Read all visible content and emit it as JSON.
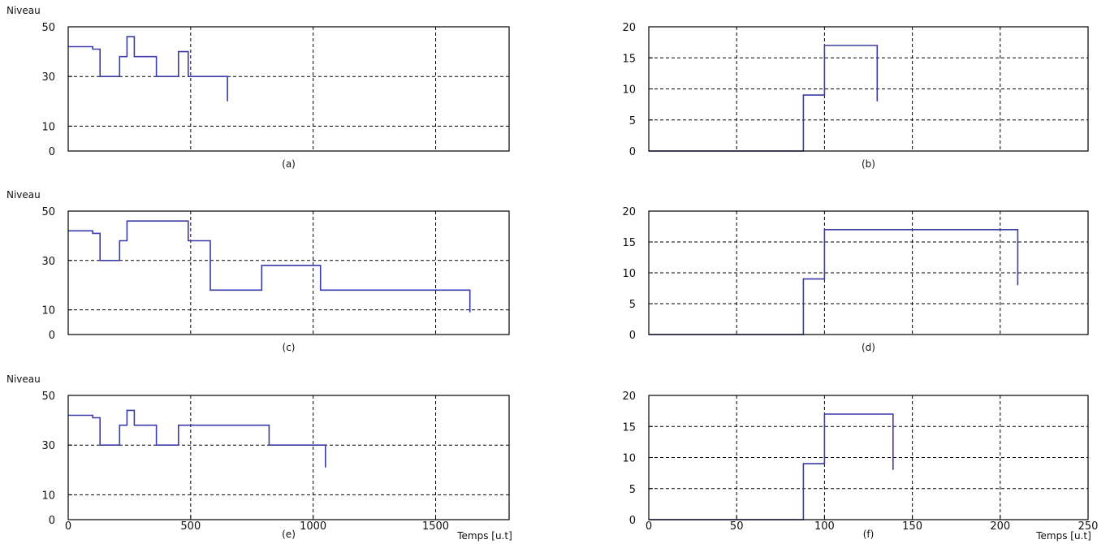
{
  "figure": {
    "background": "#ffffff",
    "line_color": "#3a3aa8",
    "grid_color": "#000000"
  },
  "chart_data": [
    {
      "id": "a",
      "type": "line",
      "caption": "(a)",
      "ylabel": "Niveau",
      "xlabel": "",
      "xlim": [
        0,
        1800
      ],
      "ylim": [
        0,
        50
      ],
      "yticks": [
        0,
        10,
        30,
        50
      ],
      "xticks": [
        500,
        1000,
        1500
      ],
      "xticklabels": [],
      "grid_y": [
        10,
        30
      ],
      "grid": true,
      "series": [
        {
          "x": [
            0,
            100,
            100,
            130,
            130,
            210,
            210,
            240,
            240,
            270,
            270,
            290,
            290,
            360,
            360,
            450,
            450,
            490,
            490,
            650,
            650
          ],
          "y": [
            42,
            42,
            41,
            41,
            30,
            30,
            38,
            38,
            46,
            46,
            38,
            38,
            38,
            38,
            30,
            30,
            40,
            40,
            30,
            30,
            20
          ]
        }
      ]
    },
    {
      "id": "b",
      "type": "line",
      "caption": "(b)",
      "ylabel": "",
      "xlabel": "",
      "xlim": [
        0,
        250
      ],
      "ylim": [
        0,
        20
      ],
      "yticks": [
        0,
        5,
        10,
        15,
        20
      ],
      "xticks": [
        50,
        100,
        150,
        200
      ],
      "xticklabels": [],
      "grid_y": [
        5,
        10,
        15
      ],
      "grid": true,
      "series": [
        {
          "x": [
            0,
            88,
            88,
            100,
            100,
            130,
            130
          ],
          "y": [
            0,
            0,
            9,
            9,
            17,
            17,
            8
          ]
        }
      ]
    },
    {
      "id": "c",
      "type": "line",
      "caption": "(c)",
      "ylabel": "Niveau",
      "xlabel": "",
      "xlim": [
        0,
        1800
      ],
      "ylim": [
        0,
        50
      ],
      "yticks": [
        0,
        10,
        30,
        50
      ],
      "xticks": [
        500,
        1000,
        1500
      ],
      "xticklabels": [],
      "grid_y": [
        10,
        30
      ],
      "grid": true,
      "series": [
        {
          "x": [
            0,
            100,
            100,
            130,
            130,
            210,
            210,
            240,
            240,
            490,
            490,
            580,
            580,
            790,
            790,
            1030,
            1030,
            1640,
            1640
          ],
          "y": [
            42,
            42,
            41,
            41,
            30,
            30,
            38,
            38,
            46,
            46,
            38,
            38,
            18,
            18,
            28,
            28,
            18,
            18,
            9
          ]
        }
      ]
    },
    {
      "id": "d",
      "type": "line",
      "caption": "(d)",
      "ylabel": "",
      "xlabel": "",
      "xlim": [
        0,
        250
      ],
      "ylim": [
        0,
        20
      ],
      "yticks": [
        0,
        5,
        10,
        15,
        20
      ],
      "xticks": [
        50,
        100,
        150,
        200
      ],
      "xticklabels": [],
      "grid_y": [
        5,
        10,
        15
      ],
      "grid": true,
      "series": [
        {
          "x": [
            0,
            88,
            88,
            100,
            100,
            210,
            210
          ],
          "y": [
            0,
            0,
            9,
            9,
            17,
            17,
            8
          ]
        }
      ]
    },
    {
      "id": "e",
      "type": "line",
      "caption": "(e)",
      "ylabel": "Niveau",
      "xlabel": "Temps [u.t]",
      "xlim": [
        0,
        1800
      ],
      "ylim": [
        0,
        50
      ],
      "yticks": [
        0,
        10,
        30,
        50
      ],
      "xticks": [
        0,
        500,
        1000,
        1500
      ],
      "xticklabels": [
        "0",
        "500",
        "1000",
        "1500"
      ],
      "grid_y": [
        10,
        30
      ],
      "grid": true,
      "series": [
        {
          "x": [
            0,
            100,
            100,
            130,
            130,
            210,
            210,
            240,
            240,
            270,
            270,
            360,
            360,
            450,
            450,
            820,
            820,
            1050,
            1050
          ],
          "y": [
            42,
            42,
            41,
            41,
            30,
            30,
            38,
            38,
            44,
            44,
            38,
            38,
            30,
            30,
            38,
            38,
            30,
            30,
            21
          ]
        }
      ]
    },
    {
      "id": "f",
      "type": "line",
      "caption": "(f)",
      "ylabel": "",
      "xlabel": "Temps [u.t]",
      "xlim": [
        0,
        250
      ],
      "ylim": [
        0,
        20
      ],
      "yticks": [
        0,
        5,
        10,
        15,
        20
      ],
      "xticks": [
        0,
        50,
        100,
        150,
        200,
        250
      ],
      "xticklabels": [
        "0",
        "50",
        "100",
        "150",
        "200",
        "250"
      ],
      "grid_y": [
        5,
        10,
        15
      ],
      "grid": true,
      "series": [
        {
          "x": [
            0,
            88,
            88,
            100,
            100,
            139,
            139
          ],
          "y": [
            0,
            0,
            9,
            9,
            17,
            17,
            8
          ]
        }
      ]
    }
  ]
}
